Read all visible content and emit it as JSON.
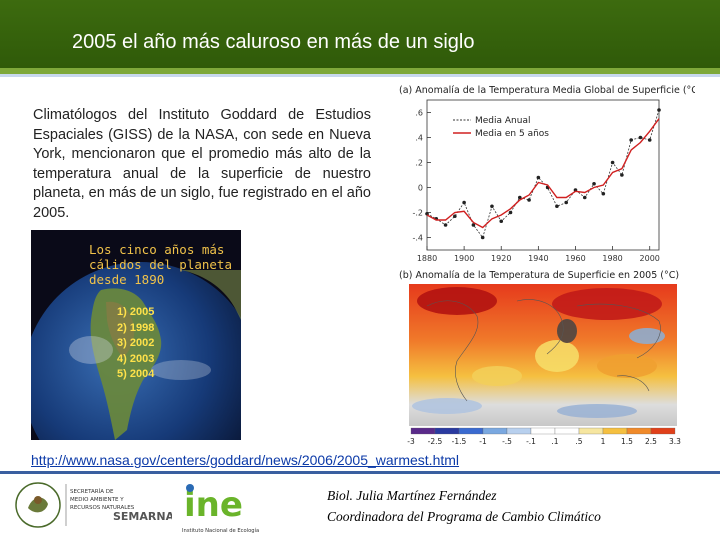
{
  "header": {
    "title": "2005 el año más caluroso en más de un siglo",
    "colors": {
      "band": "#3d6b0f",
      "stripe": "#7ea83a"
    }
  },
  "body": {
    "paragraph": "Climatólogos del Instituto Goddard de Estudios Espaciales (GISS) de la NASA, con sede en Nueva York, mencionaron que el promedio más alto de la temperatura anual de la superficie de nuestro planeta, en más de un siglo, fue registrado en el año 2005."
  },
  "globe_panel": {
    "heading_lines": [
      "Los cinco años más",
      "cálidos del planeta",
      "desde 1890"
    ],
    "ranking": [
      "1) 2005",
      "2) 1998",
      "3) 2002",
      "4) 2003",
      "5) 2004"
    ]
  },
  "chart_data": [
    {
      "type": "line",
      "title": "(a) Anomalía de la Temperatura Media Global de Superficie (°C)",
      "x_ticks": [
        "1880",
        "1900",
        "1920",
        "1940",
        "1960",
        "1980",
        "2000"
      ],
      "y_ticks": [
        ".6",
        ".4",
        ".2",
        "0",
        "-.2",
        "-.4"
      ],
      "xlim": [
        1880,
        2005
      ],
      "ylim": [
        -0.5,
        0.7
      ],
      "grid": false,
      "legend_position": "top-left",
      "series": [
        {
          "name": "Media Anual",
          "color": "#333333",
          "x": [
            1880,
            1885,
            1890,
            1895,
            1900,
            1905,
            1910,
            1915,
            1920,
            1925,
            1930,
            1935,
            1940,
            1945,
            1950,
            1955,
            1960,
            1965,
            1970,
            1975,
            1980,
            1985,
            1990,
            1995,
            2000,
            2005
          ],
          "values": [
            -0.21,
            -0.25,
            -0.3,
            -0.23,
            -0.12,
            -0.3,
            -0.4,
            -0.15,
            -0.27,
            -0.2,
            -0.08,
            -0.1,
            0.08,
            0.0,
            -0.15,
            -0.12,
            -0.02,
            -0.08,
            0.03,
            -0.05,
            0.2,
            0.1,
            0.38,
            0.4,
            0.38,
            0.62
          ]
        },
        {
          "name": "Media en 5 años",
          "color": "#d02020",
          "x": [
            1880,
            1885,
            1890,
            1895,
            1900,
            1905,
            1910,
            1915,
            1920,
            1925,
            1930,
            1935,
            1940,
            1945,
            1950,
            1955,
            1960,
            1965,
            1970,
            1975,
            1980,
            1985,
            1990,
            1995,
            2000,
            2005
          ],
          "values": [
            -0.22,
            -0.26,
            -0.26,
            -0.2,
            -0.19,
            -0.28,
            -0.32,
            -0.25,
            -0.22,
            -0.17,
            -0.1,
            -0.06,
            0.04,
            0.02,
            -0.08,
            -0.08,
            -0.03,
            -0.04,
            0.0,
            0.02,
            0.12,
            0.15,
            0.3,
            0.36,
            0.45,
            0.55
          ]
        }
      ]
    },
    {
      "type": "heatmap",
      "title": "(b) Anomalía de la Temperatura de Superficie en 2005 (°C)",
      "colorbar_ticks": [
        "-3",
        "-2.5",
        "-1.5",
        "-1",
        "-.5",
        "-.1",
        ".1",
        ".5",
        "1",
        "1.5",
        "2.5",
        "3.3"
      ]
    }
  ],
  "footer": {
    "url": "http://www.nasa.gov/centers/goddard/news/2006/2005_warmest.html",
    "author_name": "Biol. Julia Martínez Fernández",
    "author_role": "Coordinadora del Programa de Cambio Climático",
    "logo_left_lines": [
      "SECRETARÍA DE",
      "MEDIO AMBIENTE Y",
      "RECURSOS NATURALES"
    ],
    "logo_left_brand": "SEMARNAT",
    "logo_right_mark": "ine",
    "logo_right_caption": "Instituto Nacional de Ecología"
  }
}
